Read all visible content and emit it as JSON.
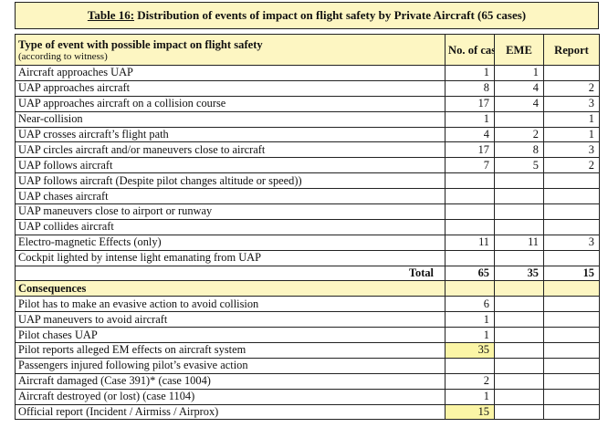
{
  "title": {
    "prefix": "Table 16:",
    "text": " Distribution of events of impact on flight safety by Private Aircraft (65 cases)"
  },
  "headers": {
    "type": "Type of event with possible impact on flight safety",
    "type_sub": "(according to witness)",
    "num": "No. of cases",
    "eme": "EME",
    "report": "Report"
  },
  "events": [
    {
      "label": "Aircraft approaches UAP",
      "num": "1",
      "eme": "1",
      "report": ""
    },
    {
      "label": "UAP approaches aircraft",
      "num": "8",
      "eme": "4",
      "report": "2"
    },
    {
      "label": "UAP approaches aircraft on a collision course",
      "num": "17",
      "eme": "4",
      "report": "3"
    },
    {
      "label": "Near-collision",
      "num": "1",
      "eme": "",
      "report": "1"
    },
    {
      "label": "UAP crosses aircraft’s flight path",
      "num": "4",
      "eme": "2",
      "report": "1"
    },
    {
      "label": "UAP circles aircraft and/or maneuvers close to aircraft",
      "num": "17",
      "eme": "8",
      "report": "3"
    },
    {
      "label": "UAP follows aircraft",
      "num": "7",
      "eme": "5",
      "report": "2"
    },
    {
      "label": "UAP follows aircraft (Despite pilot changes altitude or speed))",
      "num": "",
      "eme": "",
      "report": ""
    },
    {
      "label": "UAP chases aircraft",
      "num": "",
      "eme": "",
      "report": ""
    },
    {
      "label": "UAP maneuvers close to airport or runway",
      "num": "",
      "eme": "",
      "report": ""
    },
    {
      "label": "UAP collides aircraft",
      "num": "",
      "eme": "",
      "report": ""
    },
    {
      "label": "Electro-magnetic Effects (only)",
      "num": "11",
      "eme": "11",
      "report": "3"
    },
    {
      "label": "Cockpit lighted by intense light emanating from UAP",
      "num": "",
      "eme": "",
      "report": ""
    }
  ],
  "total": {
    "label": "Total",
    "num": "65",
    "eme": "35",
    "report": "15"
  },
  "consequences_header": "Consequences",
  "consequences": [
    {
      "label": "Pilot has to make an evasive action to avoid collision",
      "num": "6",
      "highlight": false
    },
    {
      "label": "UAP maneuvers to avoid aircraft",
      "num": "1",
      "highlight": false
    },
    {
      "label": "Pilot chases UAP",
      "num": "1",
      "highlight": false
    },
    {
      "label": "Pilot reports alleged EM effects on aircraft system",
      "num": "35",
      "highlight": true
    },
    {
      "label": "Passengers injured following pilot’s evasive action",
      "num": "",
      "highlight": false
    },
    {
      "label": "Aircraft damaged (Case 391)* (case 1004)",
      "num": "2",
      "highlight": false
    },
    {
      "label": "Aircraft destroyed (or lost) (case 1104)",
      "num": "1",
      "highlight": false
    },
    {
      "label": "Official report (Incident / Airmiss / Airprox)",
      "num": "15",
      "highlight": true
    }
  ],
  "colors": {
    "header_bg": "#fdf6c2",
    "highlight_bg": "#fbf5a6",
    "border": "#222222"
  }
}
